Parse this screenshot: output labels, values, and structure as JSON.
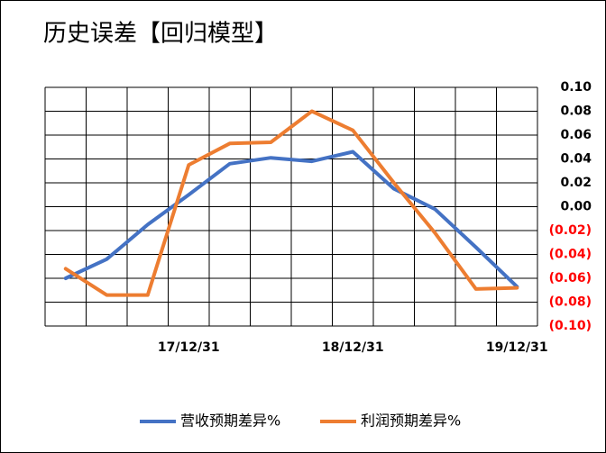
{
  "chart_data": {
    "type": "line",
    "title": "历史误差【回归模型】",
    "categories": [
      null,
      null,
      null,
      "17/12/31",
      null,
      null,
      null,
      "18/12/31",
      null,
      null,
      null,
      "19/12/31"
    ],
    "series": [
      {
        "name": "营收预期差异%",
        "color": "#4472c4",
        "values": [
          -0.06,
          -0.044,
          -0.015,
          0.01,
          0.036,
          0.041,
          0.038,
          0.046,
          0.015,
          -0.002,
          -0.034,
          -0.067
        ]
      },
      {
        "name": "利润预期差异%",
        "color": "#ed7d31",
        "values": [
          -0.052,
          -0.074,
          -0.074,
          0.035,
          0.053,
          0.054,
          0.08,
          0.064,
          0.02,
          -0.022,
          -0.069,
          -0.068
        ]
      }
    ],
    "ylim": [
      -0.1,
      0.1
    ],
    "yticks": [
      {
        "value": 0.1,
        "label": "0.10"
      },
      0.08,
      0.06,
      0.04,
      0.02,
      {
        "value": 0,
        "label": "0.00"
      },
      {
        "value": -0.02,
        "label": "(0.02)"
      },
      {
        "value": -0.04,
        "label": "(0.04)"
      },
      {
        "value": -0.06,
        "label": "(0.06)"
      },
      {
        "value": -0.08,
        "label": "(0.08)"
      },
      {
        "value": -0.1,
        "label": "(0.10)"
      }
    ],
    "negative_tick_color": "#ff0000",
    "grid": true,
    "legend": "bottom"
  }
}
